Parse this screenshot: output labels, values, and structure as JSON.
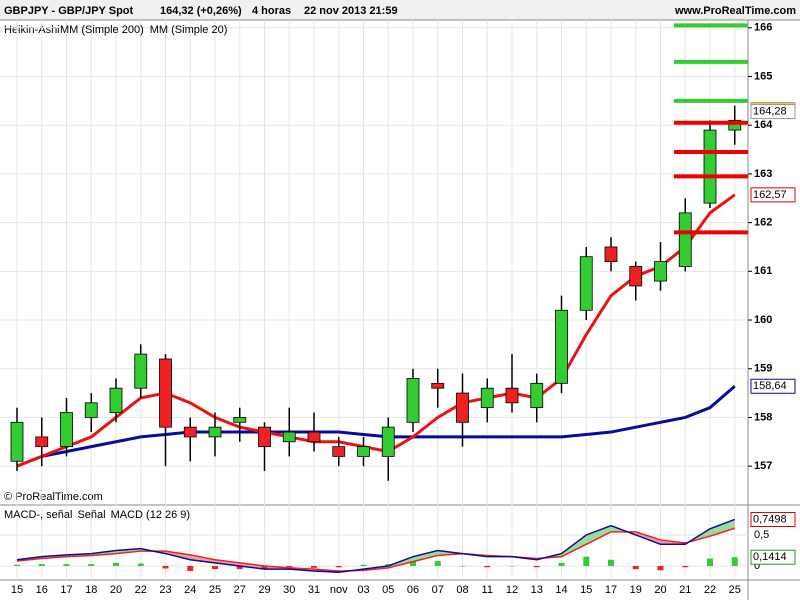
{
  "chart_data": [
    {
      "type": "candlestick",
      "title": "GBPJPY - GBP/JPY Spot",
      "price_change": "164,32 (+0,26%)",
      "timeframe": "4 horas",
      "timestamp": "22 nov 2013 21:59",
      "source": "www.ProRealTime.com",
      "copyright": "© ProRealTime.com",
      "indicator": "Heikin-Ashi",
      "categories": [
        "15",
        "16",
        "17",
        "18",
        "20",
        "22",
        "23",
        "24",
        "25",
        "27",
        "29",
        "30",
        "31",
        "nov",
        "03",
        "05",
        "06",
        "07",
        "08",
        "11",
        "12",
        "13",
        "14",
        "15",
        "17",
        "19",
        "20",
        "21",
        "22",
        "25"
      ],
      "open": [
        157.1,
        157.6,
        157.4,
        158.0,
        158.1,
        158.6,
        159.2,
        157.8,
        157.6,
        157.9,
        157.8,
        157.5,
        157.7,
        157.4,
        157.2,
        157.2,
        157.9,
        158.7,
        158.5,
        158.2,
        158.6,
        158.2,
        158.7,
        160.2,
        161.5,
        161.1,
        160.8,
        161.1,
        162.4,
        163.9
      ],
      "high": [
        158.2,
        158.0,
        158.4,
        158.5,
        158.8,
        159.5,
        159.3,
        158.0,
        158.1,
        158.2,
        157.9,
        158.2,
        158.1,
        157.6,
        157.6,
        158.0,
        159.0,
        159.0,
        158.9,
        158.8,
        159.3,
        158.9,
        160.5,
        161.5,
        161.7,
        161.2,
        161.6,
        162.5,
        164.1,
        164.4
      ],
      "low": [
        156.9,
        157.0,
        157.2,
        157.7,
        157.9,
        158.4,
        157.0,
        157.1,
        157.2,
        157.5,
        156.9,
        157.2,
        157.3,
        157.0,
        157.0,
        156.7,
        157.7,
        158.2,
        157.4,
        157.9,
        158.1,
        157.9,
        158.5,
        160.0,
        161.0,
        160.4,
        160.6,
        161.0,
        162.3,
        163.6
      ],
      "close": [
        157.9,
        157.4,
        158.1,
        158.3,
        158.6,
        159.3,
        157.8,
        157.6,
        157.8,
        158.0,
        157.4,
        157.7,
        157.5,
        157.2,
        157.4,
        157.8,
        158.8,
        158.6,
        157.9,
        158.6,
        158.3,
        158.7,
        160.2,
        161.3,
        161.2,
        160.7,
        161.2,
        162.2,
        163.9,
        164.1
      ],
      "up_color": "#33cc33",
      "down_color": "#ee2222",
      "series": [
        {
          "name": "MM (Simple 200)",
          "color": "#0a0a9e",
          "values": [
            157.0,
            157.2,
            157.3,
            157.4,
            157.5,
            157.6,
            157.65,
            157.7,
            157.7,
            157.7,
            157.7,
            157.7,
            157.7,
            157.7,
            157.65,
            157.6,
            157.6,
            157.6,
            157.6,
            157.6,
            157.6,
            157.6,
            157.6,
            157.65,
            157.7,
            157.8,
            157.9,
            158.0,
            158.2,
            158.64
          ]
        },
        {
          "name": "MM (Simple 20)",
          "color": "#ee1111",
          "values": [
            157.0,
            157.2,
            157.4,
            157.6,
            158.0,
            158.4,
            158.5,
            158.3,
            158.0,
            157.8,
            157.7,
            157.6,
            157.5,
            157.5,
            157.4,
            157.3,
            157.6,
            158.0,
            158.3,
            158.4,
            158.5,
            158.4,
            158.8,
            159.7,
            160.5,
            160.9,
            161.1,
            161.5,
            162.2,
            162.57
          ]
        }
      ],
      "ylim": [
        156.51,
        166.16
      ],
      "yticks": [
        157,
        158,
        159,
        160,
        161,
        162,
        163,
        164,
        165,
        166
      ],
      "grid": true,
      "price_tags": [
        {
          "value": 164.32,
          "label": "164,32",
          "color": "#000000",
          "fill": "#ffcc00"
        },
        {
          "value": 164.28,
          "label": "164,28",
          "color": "#000000",
          "fill": "#ffffff"
        },
        {
          "value": 162.57,
          "label": "162,57",
          "color": "#dd0000",
          "fill": "#ffffff"
        },
        {
          "value": 158.64,
          "label": "158,64",
          "color": "#0a0a9e",
          "fill": "#ffffff"
        }
      ],
      "levels": [
        {
          "value": 166.05,
          "color": "#33cc33"
        },
        {
          "value": 165.3,
          "color": "#33cc33"
        },
        {
          "value": 164.5,
          "color": "#33cc33"
        },
        {
          "value": 164.05,
          "color": "#ee0000"
        },
        {
          "value": 163.45,
          "color": "#ee0000"
        },
        {
          "value": 162.95,
          "color": "#ee0000"
        },
        {
          "value": 161.8,
          "color": "#ee0000"
        }
      ]
    },
    {
      "type": "macd",
      "series": [
        {
          "name": "MACD-, señal",
          "color": "#33cc33",
          "values": [
            0.02,
            0.03,
            0.03,
            0.03,
            0.05,
            0.04,
            -0.04,
            -0.08,
            -0.05,
            -0.05,
            -0.05,
            -0.02,
            -0.03,
            -0.02,
            0.02,
            0.03,
            0.08,
            0.08,
            0,
            -0.02,
            0,
            -0.02,
            0.05,
            0.15,
            0.1,
            -0.05,
            -0.07,
            -0.02,
            0.12,
            0.1414
          ]
        },
        {
          "name": "Señal",
          "color": "#ee2222",
          "values": [
            0.08,
            0.12,
            0.15,
            0.17,
            0.2,
            0.24,
            0.24,
            0.18,
            0.1,
            0.05,
            0,
            -0.03,
            -0.05,
            -0.08,
            -0.07,
            -0.03,
            0.07,
            0.17,
            0.2,
            0.17,
            0.15,
            0.12,
            0.15,
            0.35,
            0.55,
            0.55,
            0.42,
            0.37,
            0.48,
            0.6084
          ]
        },
        {
          "name": "MACD (12 26 9)",
          "color": "#0a0a9e",
          "values": [
            0.1,
            0.15,
            0.18,
            0.2,
            0.25,
            0.28,
            0.2,
            0.1,
            0.05,
            0,
            -0.05,
            -0.05,
            -0.08,
            -0.1,
            -0.05,
            0,
            0.15,
            0.25,
            0.2,
            0.15,
            0.15,
            0.1,
            0.2,
            0.5,
            0.65,
            0.5,
            0.35,
            0.35,
            0.6,
            0.7498
          ]
        }
      ],
      "ylim": [
        -0.226,
        0.935
      ],
      "yticks": [
        0,
        {
          "value": 0.5,
          "label": "0,5"
        }
      ],
      "tags": [
        {
          "value": 0.7498,
          "label": "0,7498",
          "color": "#dd0000"
        },
        {
          "value": 0.1414,
          "label": "0,1414",
          "color": "#229922"
        }
      ]
    }
  ]
}
